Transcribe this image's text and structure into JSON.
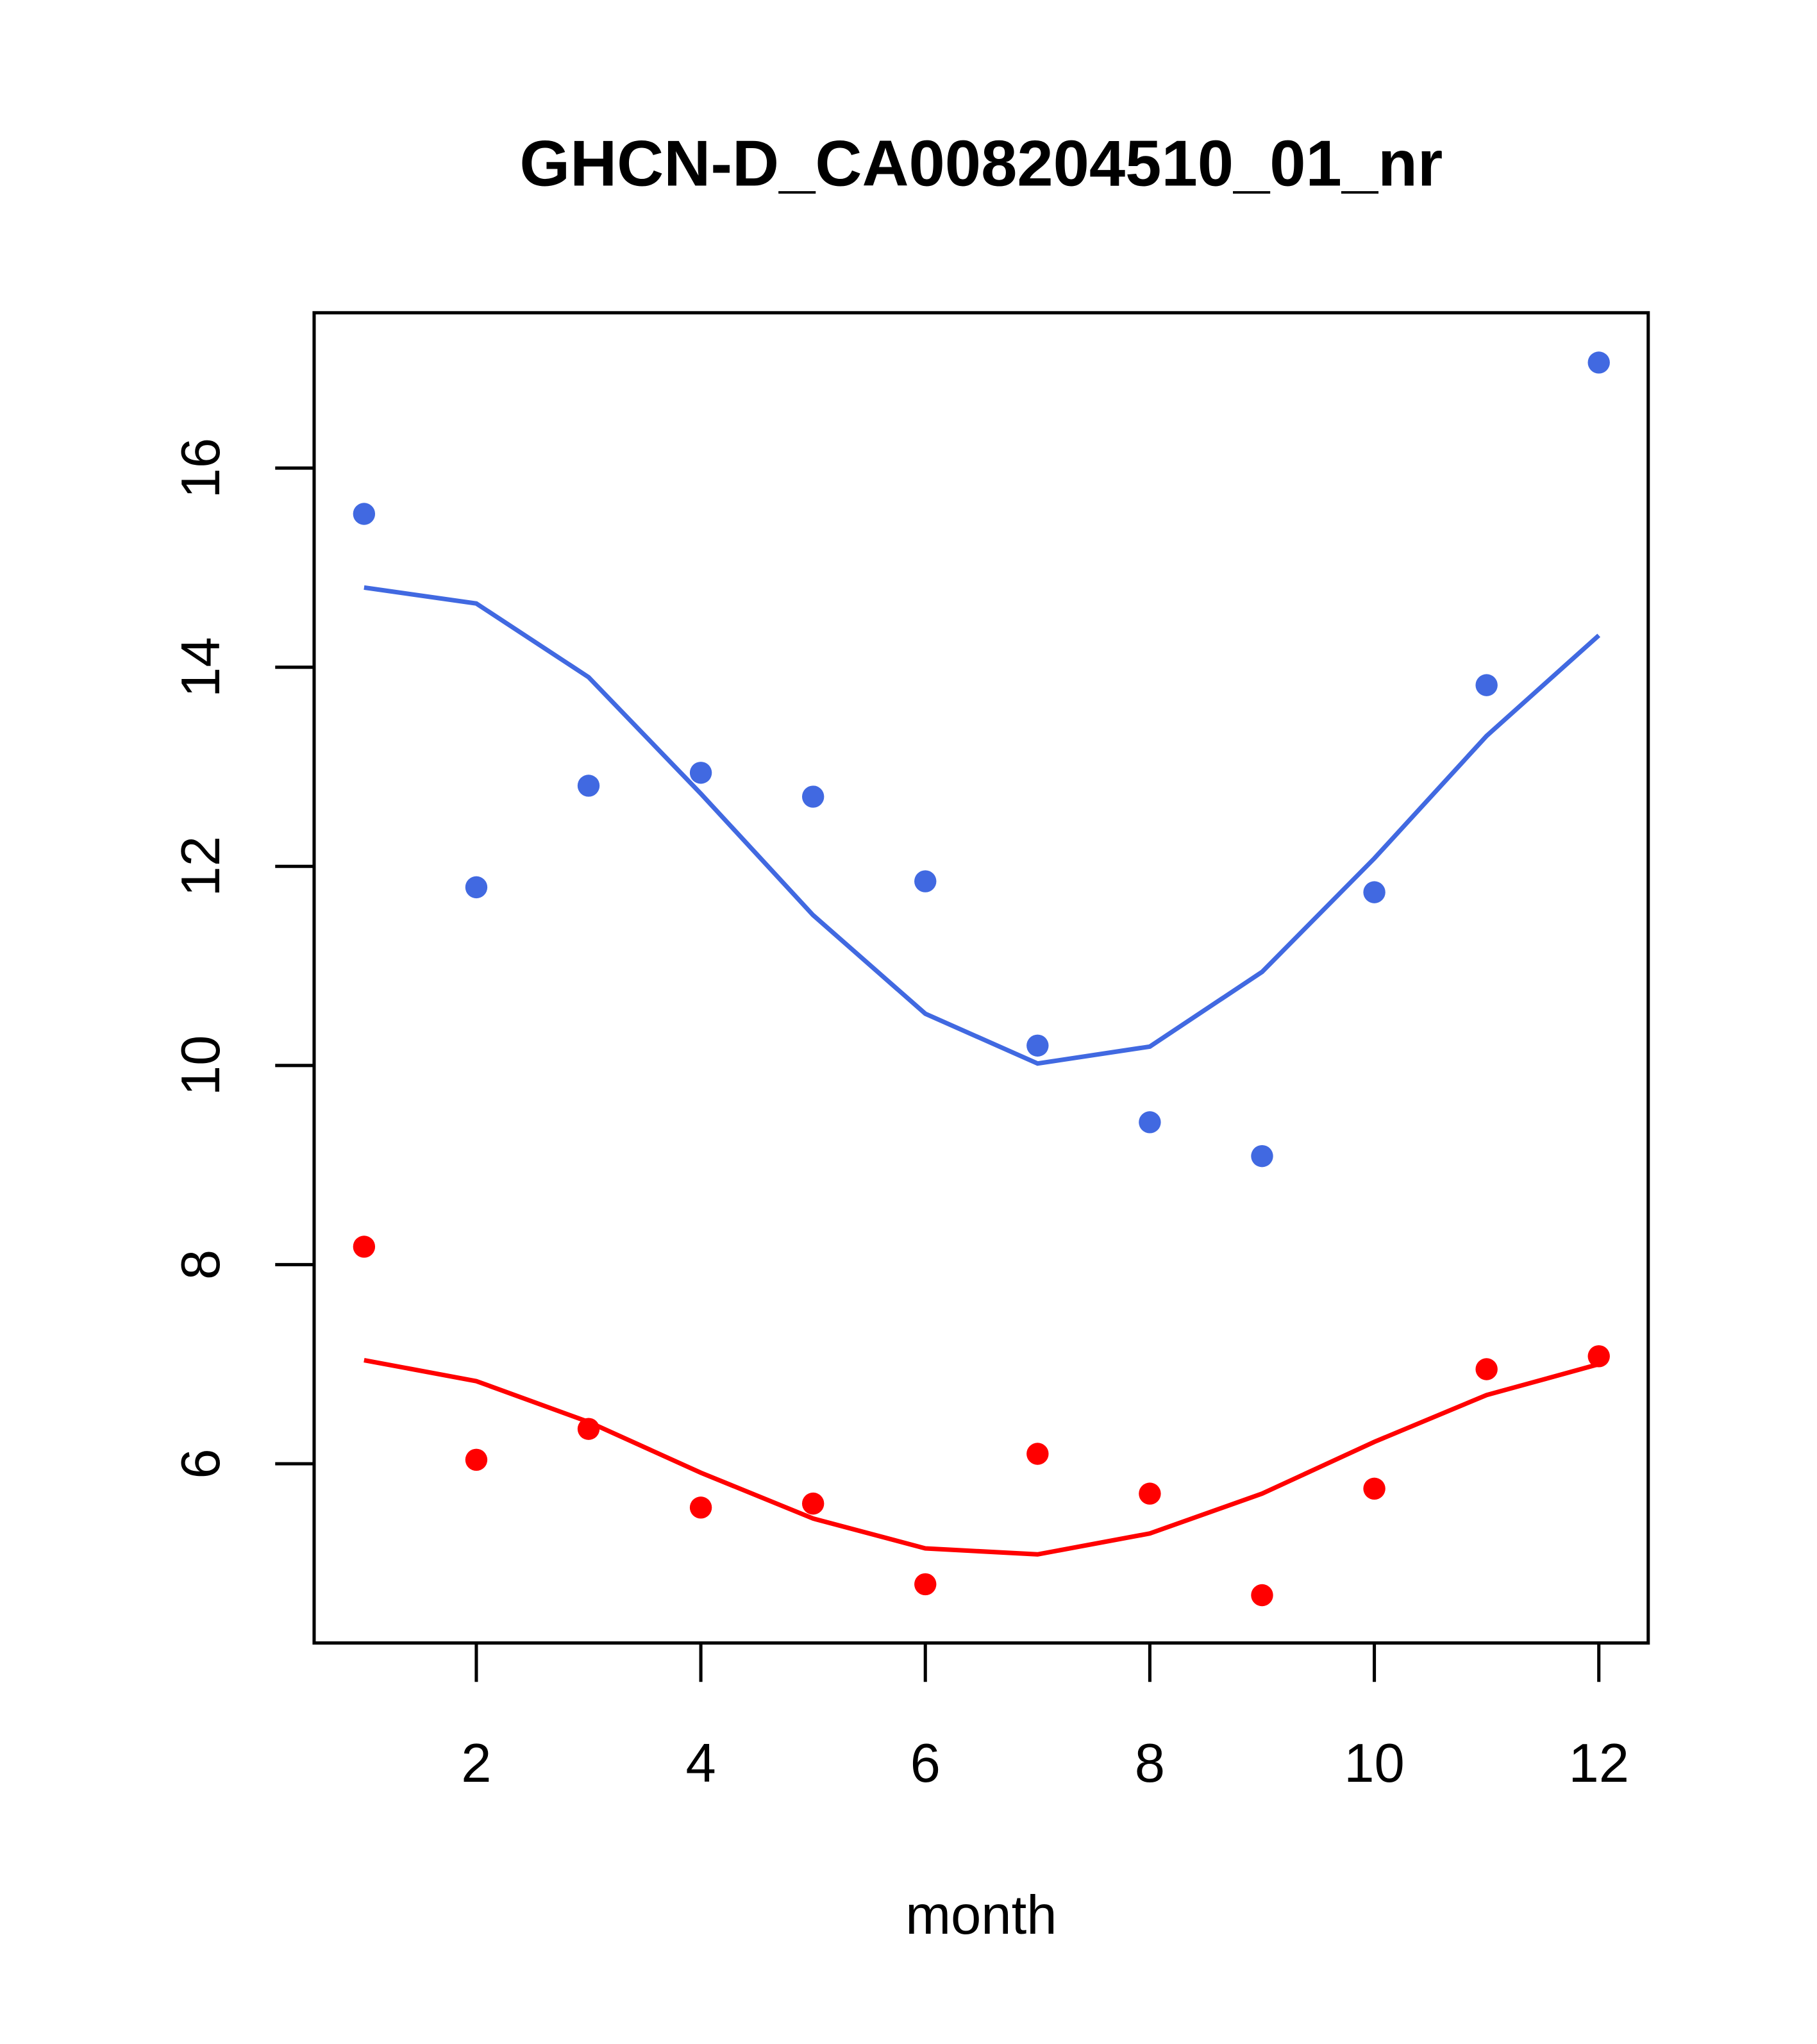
{
  "chart_data": {
    "type": "scatter",
    "title": "GHCN-D_CA008204510_01_nr",
    "xlabel": "month",
    "ylabel": "",
    "xlim": [
      0.555,
      12.44
    ],
    "ylim": [
      4.2,
      17.56
    ],
    "xticks": [
      2,
      4,
      6,
      8,
      10,
      12
    ],
    "yticks": [
      6,
      8,
      10,
      12,
      14,
      16
    ],
    "grid": false,
    "x": [
      1,
      2,
      3,
      4,
      5,
      6,
      7,
      8,
      9,
      10,
      11,
      12
    ],
    "series": [
      {
        "name": "blue points",
        "kind": "points",
        "color": "#4169E1",
        "values": [
          15.54,
          11.79,
          12.81,
          12.94,
          12.7,
          11.85,
          10.2,
          9.43,
          9.09,
          11.74,
          13.82,
          17.06
        ]
      },
      {
        "name": "blue line",
        "kind": "line",
        "color": "#4169E1",
        "values": [
          14.8,
          14.64,
          13.9,
          12.73,
          11.51,
          10.52,
          10.02,
          10.19,
          10.94,
          12.08,
          13.31,
          14.32
        ]
      },
      {
        "name": "red points",
        "kind": "points",
        "color": "#FF0000",
        "values": [
          8.18,
          6.04,
          6.35,
          5.56,
          5.6,
          4.79,
          6.1,
          5.7,
          4.68,
          5.75,
          6.95,
          7.08
        ]
      },
      {
        "name": "red line",
        "kind": "line",
        "color": "#FF0000",
        "values": [
          7.04,
          6.83,
          6.42,
          5.91,
          5.45,
          5.15,
          5.09,
          5.3,
          5.7,
          6.22,
          6.69,
          7.0
        ]
      }
    ]
  }
}
